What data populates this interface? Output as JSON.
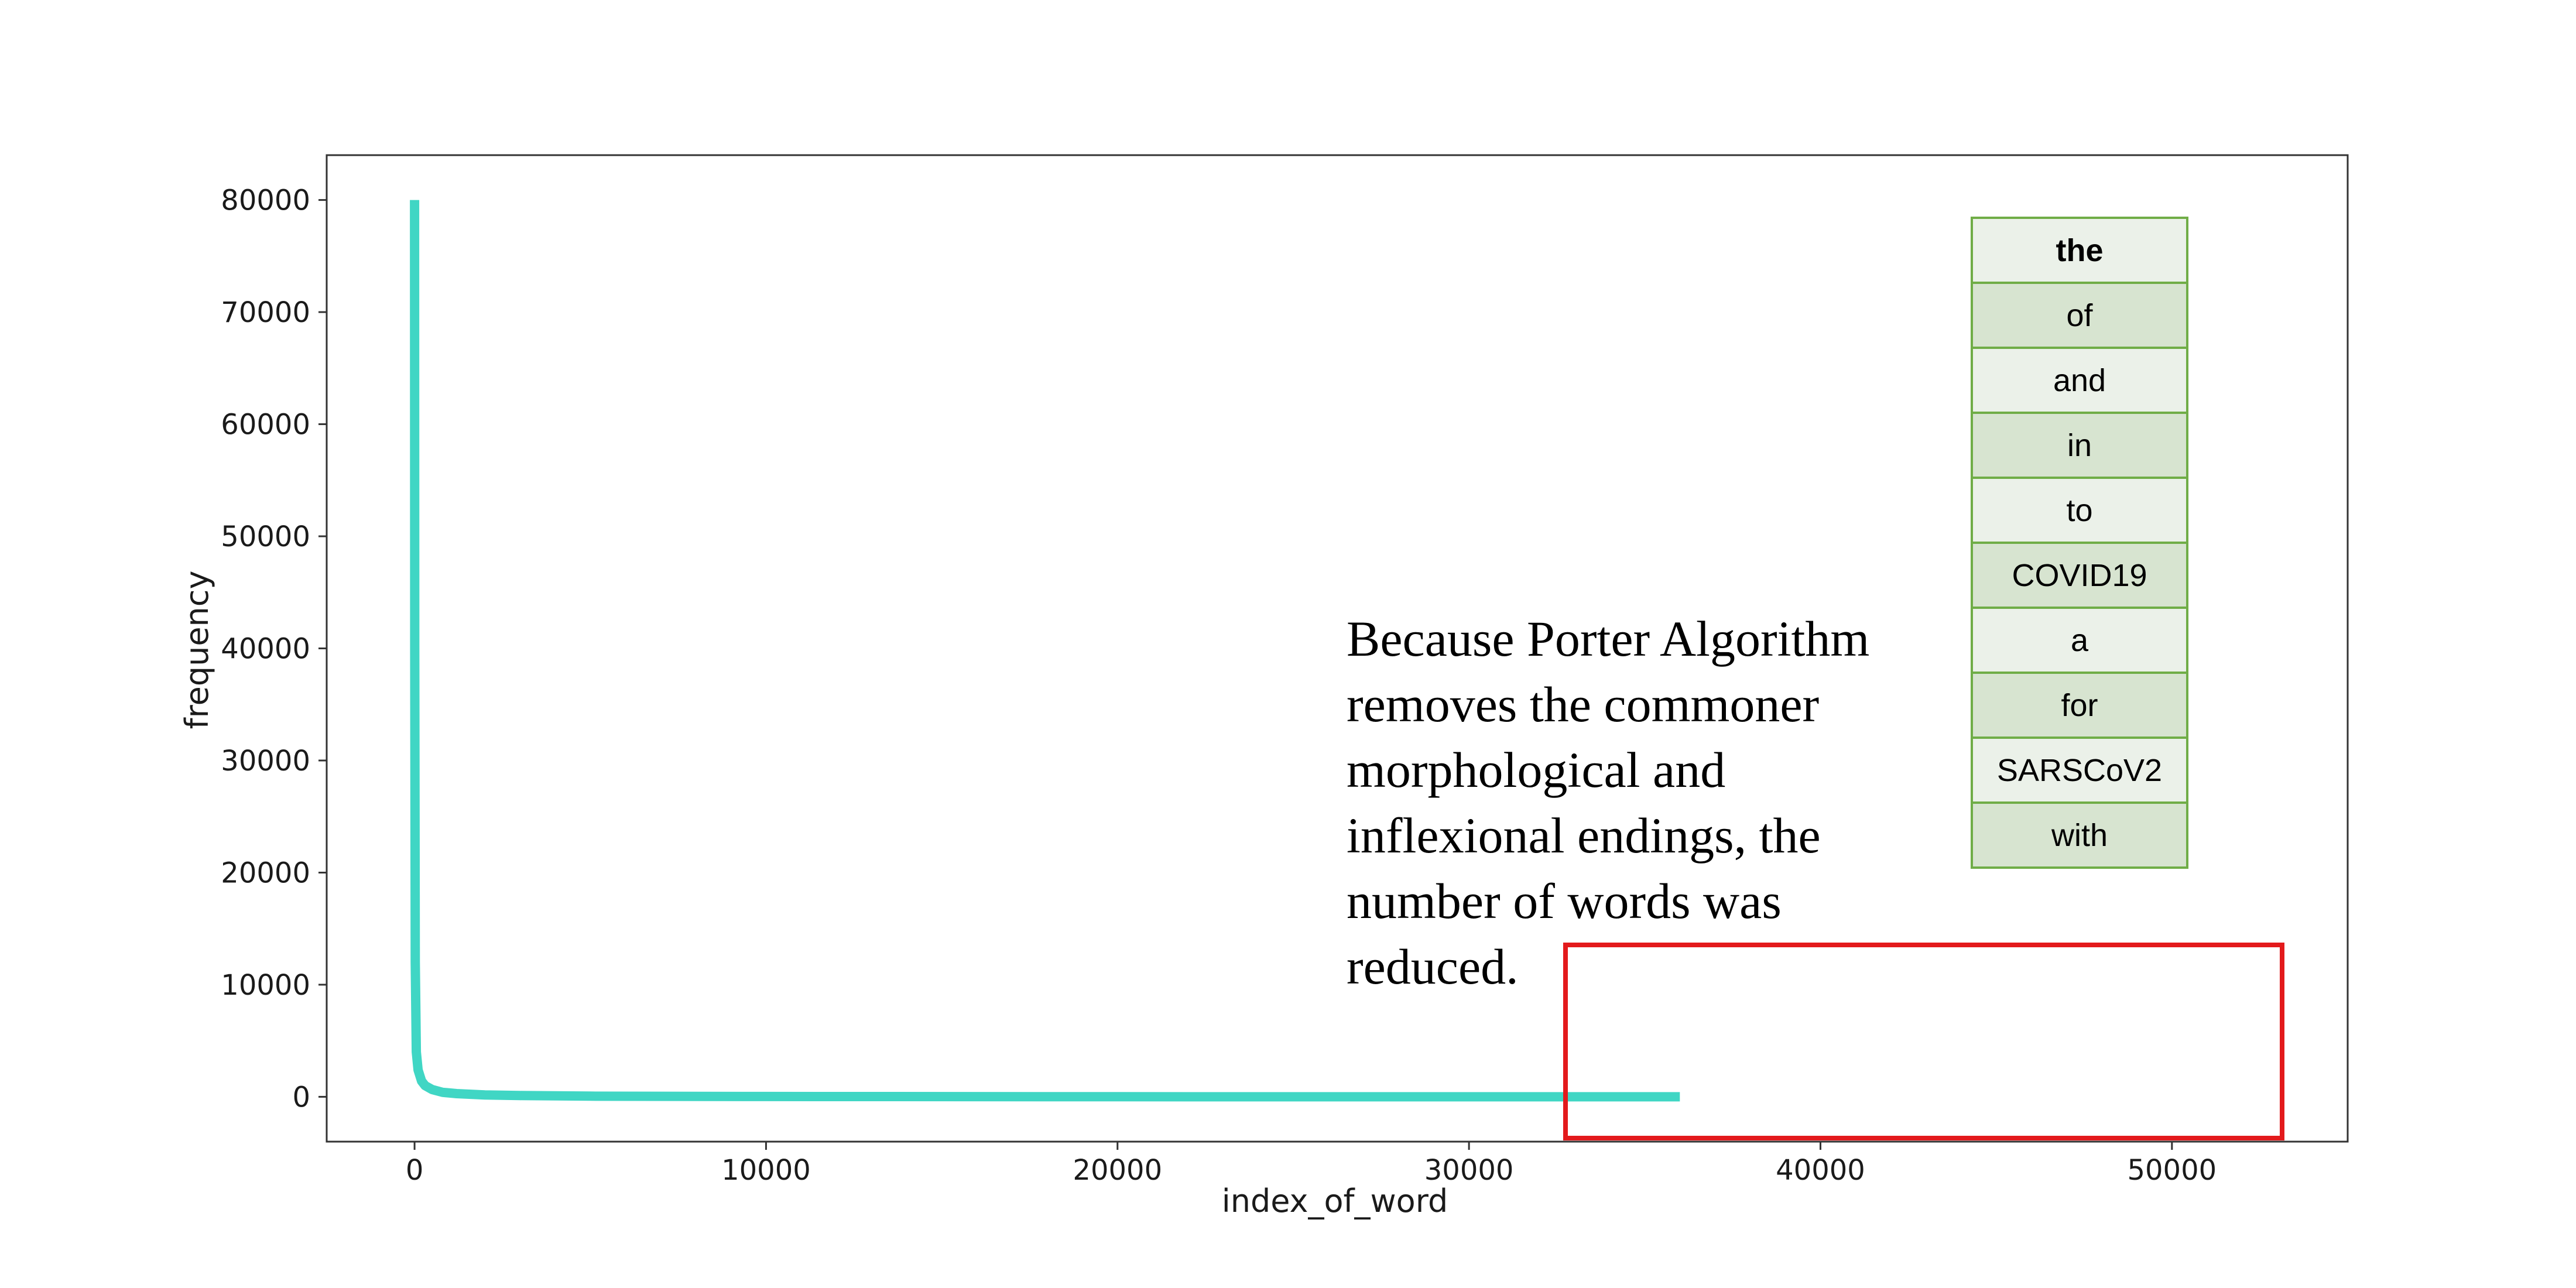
{
  "chart_data": {
    "type": "line",
    "xlabel": "index_of_word",
    "ylabel": "frequency",
    "xlim": [
      -2500,
      55000
    ],
    "ylim": [
      -4000,
      84000
    ],
    "xticks": [
      0,
      10000,
      20000,
      30000,
      40000,
      50000
    ],
    "yticks": [
      0,
      10000,
      20000,
      30000,
      40000,
      50000,
      60000,
      70000,
      80000
    ],
    "xtick_labels": [
      "0",
      "10000",
      "20000",
      "30000",
      "40000",
      "50000"
    ],
    "ytick_labels": [
      "0",
      "10000",
      "20000",
      "30000",
      "40000",
      "50000",
      "60000",
      "70000",
      "80000"
    ],
    "grid": false,
    "series": [
      {
        "color": "#40d6c4",
        "x": [
          0,
          5,
          20,
          50,
          100,
          200,
          300,
          500,
          800,
          1200,
          2000,
          3000,
          5000,
          10000,
          20000,
          30000,
          36000
        ],
        "y": [
          80000,
          40000,
          12000,
          4000,
          2400,
          1400,
          1000,
          650,
          400,
          280,
          170,
          110,
          60,
          25,
          8,
          2,
          1
        ]
      }
    ],
    "annotation": "Because Porter Algorithm removes the commoner morphological and inflexional endings, the number of words was reduced.",
    "top_words": [
      "the",
      "of",
      "and",
      "in",
      "to",
      "COVID19",
      "a",
      "for",
      "SARSCoV2",
      "with"
    ],
    "highlight_color": "#e31a1c"
  }
}
